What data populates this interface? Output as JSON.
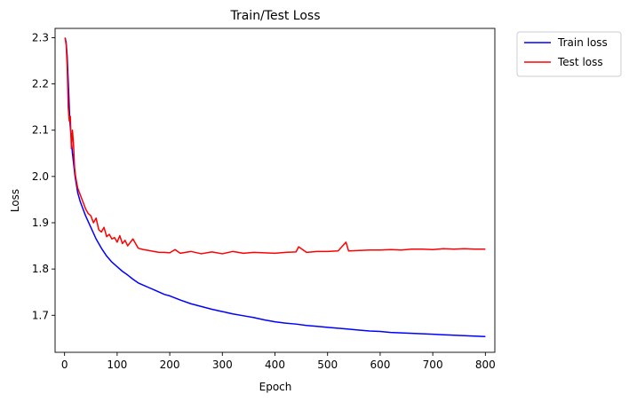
{
  "chart_data": {
    "type": "line",
    "title": "Train/Test Loss",
    "xlabel": "Epoch",
    "ylabel": "Loss",
    "xlim": [
      -18,
      818
    ],
    "ylim": [
      1.62,
      2.32
    ],
    "xticks": [
      0,
      100,
      200,
      300,
      400,
      500,
      600,
      700,
      800
    ],
    "yticks": [
      1.7,
      1.8,
      1.9,
      2.0,
      2.1,
      2.2,
      2.3
    ],
    "grid": false,
    "legend_position": "outside upper right",
    "series": [
      {
        "name": "Train loss",
        "color": "#0000ff",
        "x": [
          1,
          3,
          5,
          8,
          10,
          13,
          15,
          18,
          20,
          25,
          30,
          35,
          40,
          50,
          60,
          70,
          80,
          90,
          100,
          110,
          120,
          130,
          140,
          150,
          160,
          170,
          180,
          190,
          200,
          220,
          240,
          260,
          280,
          300,
          320,
          340,
          360,
          380,
          400,
          420,
          440,
          460,
          480,
          500,
          520,
          540,
          560,
          580,
          600,
          620,
          640,
          660,
          680,
          700,
          720,
          740,
          760,
          780,
          800
        ],
        "y": [
          2.3,
          2.29,
          2.26,
          2.18,
          2.12,
          2.08,
          2.05,
          2.02,
          2.0,
          1.965,
          1.945,
          1.93,
          1.915,
          1.89,
          1.865,
          1.845,
          1.828,
          1.815,
          1.805,
          1.795,
          1.787,
          1.778,
          1.77,
          1.765,
          1.76,
          1.755,
          1.75,
          1.745,
          1.742,
          1.733,
          1.725,
          1.719,
          1.713,
          1.708,
          1.703,
          1.699,
          1.695,
          1.69,
          1.686,
          1.683,
          1.681,
          1.678,
          1.676,
          1.674,
          1.672,
          1.67,
          1.668,
          1.666,
          1.665,
          1.663,
          1.662,
          1.661,
          1.66,
          1.659,
          1.658,
          1.657,
          1.656,
          1.655,
          1.654
        ]
      },
      {
        "name": "Test loss",
        "color": "#ff0000",
        "x": [
          1,
          3,
          5,
          7,
          9,
          11,
          13,
          15,
          17,
          19,
          21,
          25,
          30,
          35,
          40,
          45,
          50,
          55,
          60,
          65,
          70,
          75,
          80,
          85,
          90,
          95,
          100,
          105,
          110,
          115,
          120,
          130,
          140,
          150,
          160,
          170,
          180,
          190,
          200,
          210,
          220,
          240,
          260,
          280,
          300,
          320,
          340,
          360,
          380,
          400,
          420,
          440,
          445,
          460,
          480,
          500,
          520,
          535,
          540,
          560,
          580,
          600,
          620,
          640,
          660,
          680,
          700,
          720,
          740,
          760,
          780,
          800
        ],
        "y": [
          2.3,
          2.285,
          2.24,
          2.15,
          2.12,
          2.13,
          2.06,
          2.1,
          2.07,
          2.02,
          2.0,
          1.975,
          1.96,
          1.945,
          1.93,
          1.92,
          1.915,
          1.9,
          1.91,
          1.885,
          1.88,
          1.89,
          1.87,
          1.875,
          1.865,
          1.868,
          1.858,
          1.872,
          1.855,
          1.862,
          1.85,
          1.865,
          1.845,
          1.842,
          1.84,
          1.838,
          1.836,
          1.836,
          1.835,
          1.842,
          1.834,
          1.838,
          1.833,
          1.837,
          1.833,
          1.838,
          1.834,
          1.836,
          1.835,
          1.834,
          1.836,
          1.837,
          1.848,
          1.836,
          1.838,
          1.838,
          1.839,
          1.858,
          1.839,
          1.84,
          1.841,
          1.841,
          1.842,
          1.841,
          1.843,
          1.843,
          1.842,
          1.844,
          1.843,
          1.844,
          1.843,
          1.843
        ]
      }
    ]
  }
}
